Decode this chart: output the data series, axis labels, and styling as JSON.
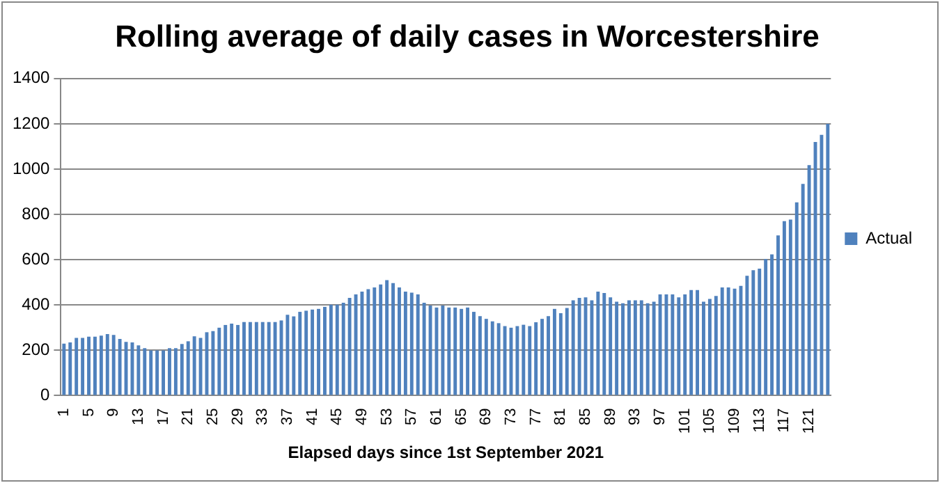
{
  "chart_data": {
    "type": "bar",
    "title": "Rolling average of daily cases in Worcestershire",
    "xlabel": "Elapsed days since 1st September 2021",
    "categories": [
      "1",
      null,
      null,
      null,
      "5",
      null,
      null,
      null,
      "9",
      null,
      null,
      null,
      "13",
      null,
      null,
      null,
      "17",
      null,
      null,
      null,
      "21",
      null,
      null,
      null,
      "25",
      null,
      null,
      null,
      "29",
      null,
      null,
      null,
      "33",
      null,
      null,
      null,
      "37",
      null,
      null,
      null,
      "41",
      null,
      null,
      null,
      "45",
      null,
      null,
      null,
      "49",
      null,
      null,
      null,
      "53",
      null,
      null,
      null,
      "57",
      null,
      null,
      null,
      "61",
      null,
      null,
      null,
      "65",
      null,
      null,
      null,
      "69",
      null,
      null,
      null,
      "73",
      null,
      null,
      null,
      "77",
      null,
      null,
      null,
      "81",
      null,
      null,
      null,
      "85",
      null,
      null,
      null,
      "89",
      null,
      null,
      null,
      "93",
      null,
      null,
      null,
      "97",
      null,
      null,
      null,
      "101",
      null,
      null,
      null,
      "105",
      null,
      null,
      null,
      "109",
      null,
      null,
      null,
      "113",
      null,
      null,
      null,
      "117",
      null,
      null,
      null,
      "121",
      null,
      null,
      null
    ],
    "series": [
      {
        "name": "Actual",
        "color": "#4f81bd",
        "values": [
          230,
          235,
          255,
          255,
          260,
          260,
          265,
          272,
          268,
          250,
          237,
          235,
          222,
          210,
          200,
          200,
          200,
          210,
          210,
          228,
          240,
          262,
          255,
          280,
          285,
          300,
          312,
          318,
          312,
          325,
          325,
          325,
          325,
          325,
          325,
          332,
          357,
          350,
          370,
          375,
          380,
          383,
          392,
          402,
          402,
          410,
          432,
          447,
          459,
          470,
          478,
          491,
          510,
          497,
          478,
          459,
          455,
          447,
          410,
          398,
          389,
          398,
          389,
          389,
          383,
          389,
          370,
          351,
          339,
          328,
          320,
          307,
          300,
          307,
          313,
          307,
          324,
          339,
          351,
          383,
          364,
          387,
          421,
          432,
          434,
          421,
          459,
          453,
          434,
          415,
          408,
          421,
          421,
          421,
          408,
          415,
          447,
          447,
          447,
          434,
          447,
          466,
          466,
          415,
          427,
          440,
          478,
          478,
          472,
          485,
          529,
          554,
          561,
          603,
          624,
          707,
          770,
          777,
          853,
          935,
          1018,
          1120,
          1151,
          1200
        ]
      }
    ],
    "ylim": [
      0,
      1400
    ],
    "yticks": [
      0,
      200,
      400,
      600,
      800,
      1000,
      1200,
      1400
    ],
    "grid": "y",
    "legend": "right"
  }
}
